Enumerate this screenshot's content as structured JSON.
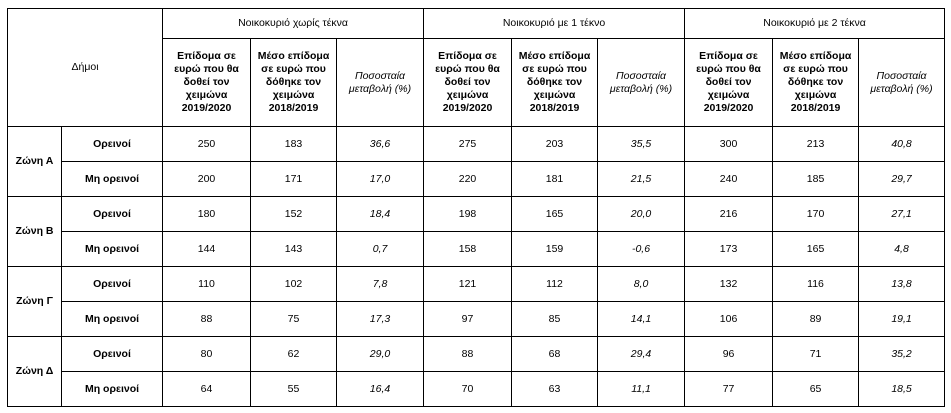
{
  "header": {
    "municipalities": "Δήμοι",
    "groups": [
      "Νοικοκυριό χωρίς τέκνα",
      "Νοικοκυριό με 1 τέκνο",
      "Νοικοκυριό με 2 τέκνα"
    ],
    "subcols": [
      "Επίδομα σε ευρώ που θα δοθεί τον χειμώνα 2019/2020",
      "Μέσο επίδομα σε ευρώ που δόθηκε τον χειμώνα 2018/2019",
      "Ποσοσταία μεταβολή (%)"
    ]
  },
  "zones": [
    {
      "name": "Ζώνη Α",
      "rows": [
        {
          "label": "Ορεινοί",
          "values": [
            "250",
            "183",
            "36,6",
            "275",
            "203",
            "35,5",
            "300",
            "213",
            "40,8"
          ]
        },
        {
          "label": "Μη ορεινοί",
          "values": [
            "200",
            "171",
            "17,0",
            "220",
            "181",
            "21,5",
            "240",
            "185",
            "29,7"
          ]
        }
      ]
    },
    {
      "name": "Ζώνη Β",
      "rows": [
        {
          "label": "Ορεινοί",
          "values": [
            "180",
            "152",
            "18,4",
            "198",
            "165",
            "20,0",
            "216",
            "170",
            "27,1"
          ]
        },
        {
          "label": "Μη ορεινοί",
          "values": [
            "144",
            "143",
            "0,7",
            "158",
            "159",
            "-0,6",
            "173",
            "165",
            "4,8"
          ]
        }
      ]
    },
    {
      "name": "Ζώνη Γ",
      "rows": [
        {
          "label": "Ορεινοί",
          "values": [
            "110",
            "102",
            "7,8",
            "121",
            "112",
            "8,0",
            "132",
            "116",
            "13,8"
          ]
        },
        {
          "label": "Μη ορεινοί",
          "values": [
            "88",
            "75",
            "17,3",
            "97",
            "85",
            "14,1",
            "106",
            "89",
            "19,1"
          ]
        }
      ]
    },
    {
      "name": "Ζώνη Δ",
      "rows": [
        {
          "label": "Ορεινοί",
          "values": [
            "80",
            "62",
            "29,0",
            "88",
            "68",
            "29,4",
            "96",
            "71",
            "35,2"
          ]
        },
        {
          "label": "Μη ορεινοί",
          "values": [
            "64",
            "55",
            "16,4",
            "70",
            "63",
            "11,1",
            "77",
            "65",
            "18,5"
          ]
        }
      ]
    }
  ]
}
